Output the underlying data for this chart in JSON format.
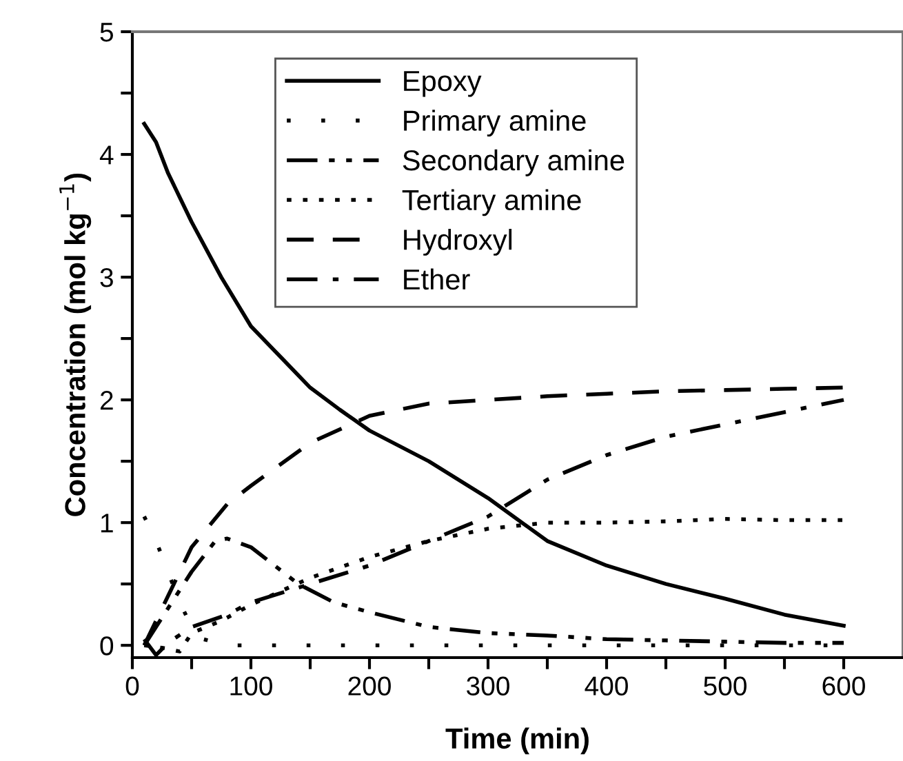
{
  "chart_data": {
    "type": "line",
    "xlabel": "Time (min)",
    "ylabel": "Concentration (mol kg$^{−1}$)",
    "xlim": [
      0,
      650
    ],
    "ylim": [
      -0.1,
      5
    ],
    "xticks": [
      0,
      {
        "value": 50,
        "label": null
      },
      100,
      {
        "value": 150,
        "label": null
      },
      200,
      {
        "value": 250,
        "label": null
      },
      300,
      {
        "value": 350,
        "label": null
      },
      400,
      {
        "value": 450,
        "label": null
      },
      500,
      {
        "value": 550,
        "label": null
      },
      600
    ],
    "yticks": [
      0,
      {
        "value": 0.5,
        "label": null
      },
      1,
      {
        "value": 1.5,
        "label": null
      },
      2,
      {
        "value": 2.5,
        "label": null
      },
      3,
      {
        "value": 3.5,
        "label": null
      },
      4,
      {
        "value": 4.5,
        "label": null
      },
      5
    ],
    "legend": "top",
    "grid": false,
    "series": [
      {
        "name": "Epoxy",
        "color": "#000000",
        "line_style": "solid",
        "x": [
          10,
          20,
          30,
          50,
          75,
          100,
          125,
          150,
          175,
          200,
          250,
          300,
          350,
          400,
          450,
          500,
          550,
          600
        ],
        "values": [
          4.25,
          4.1,
          3.85,
          3.45,
          3.0,
          2.6,
          2.35,
          2.1,
          1.92,
          1.75,
          1.5,
          1.2,
          0.85,
          0.65,
          0.5,
          0.38,
          0.25,
          0.16
        ]
      },
      {
        "name": "Primary amine",
        "color": "#000000",
        "line_style": "loosely dotted",
        "x": [
          10,
          20,
          30,
          40,
          50,
          60,
          80,
          100,
          200,
          300,
          400,
          500,
          600
        ],
        "values": [
          1.05,
          0.85,
          0.6,
          0.35,
          0.15,
          0.05,
          0,
          0,
          0,
          0,
          0,
          0,
          0
        ]
      },
      {
        "name": "Secondary amine",
        "color": "#000000",
        "line_style": "dashdotdot",
        "x": [
          10,
          30,
          50,
          70,
          80,
          100,
          120,
          140,
          170,
          200,
          250,
          300,
          350,
          400,
          450,
          500,
          550,
          600
        ],
        "values": [
          0,
          0.3,
          0.6,
          0.85,
          0.87,
          0.8,
          0.65,
          0.5,
          0.35,
          0.27,
          0.15,
          0.1,
          0.08,
          0.05,
          0.04,
          0.03,
          0.02,
          0.02
        ]
      },
      {
        "name": "Tertiary amine",
        "color": "#000000",
        "line_style": "dotted",
        "x": [
          10,
          25,
          40,
          50,
          75,
          100,
          150,
          200,
          250,
          300,
          330,
          350,
          400,
          450,
          500,
          550,
          600
        ],
        "values": [
          0,
          -0.02,
          -0.05,
          0.1,
          0.2,
          0.33,
          0.55,
          0.72,
          0.85,
          0.95,
          0.98,
          1.0,
          1.0,
          1.01,
          1.03,
          1.02,
          1.02
        ]
      },
      {
        "name": "Hydroxyl",
        "color": "#000000",
        "line_style": "dashed",
        "x": [
          10,
          30,
          50,
          80,
          100,
          150,
          200,
          250,
          300,
          350,
          400,
          450,
          500,
          550,
          600
        ],
        "values": [
          0,
          0.4,
          0.8,
          1.15,
          1.3,
          1.65,
          1.87,
          1.97,
          2.0,
          2.03,
          2.05,
          2.07,
          2.08,
          2.09,
          2.1
        ]
      },
      {
        "name": "Ether",
        "color": "#000000",
        "line_style": "dashdot",
        "x": [
          10,
          20,
          30,
          50,
          80,
          100,
          150,
          200,
          250,
          300,
          350,
          400,
          450,
          500,
          550,
          600
        ],
        "values": [
          0.05,
          -0.08,
          0.02,
          0.15,
          0.25,
          0.35,
          0.5,
          0.65,
          0.85,
          1.05,
          1.35,
          1.55,
          1.7,
          1.8,
          1.9,
          2.0
        ]
      }
    ]
  }
}
